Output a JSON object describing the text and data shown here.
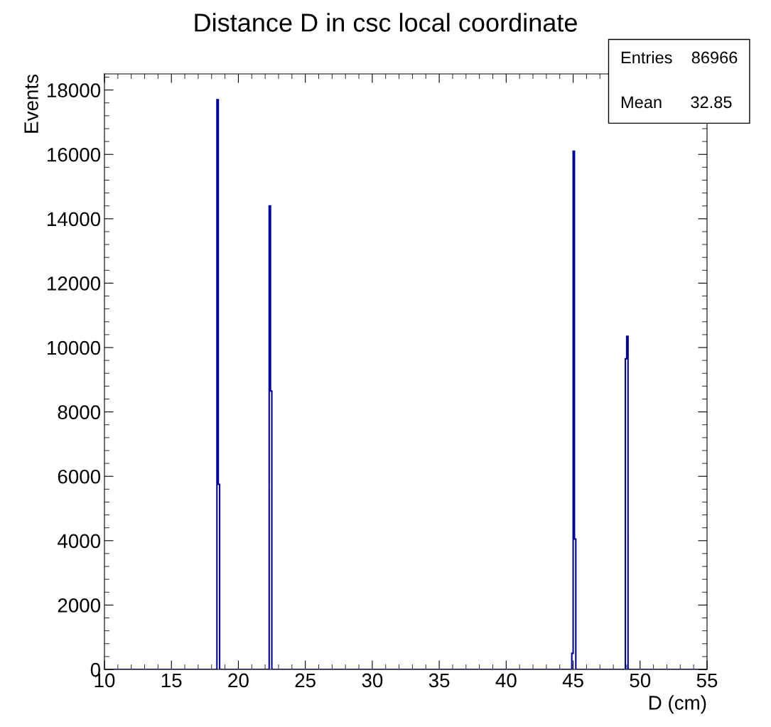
{
  "chart_data": {
    "type": "histogram",
    "title": "Distance D in csc local coordinate",
    "xlabel": "D (cm)",
    "ylabel": "Events",
    "bins": [
      10,
      18.4,
      18.5,
      18.6,
      22.3,
      22.4,
      22.5,
      44.9,
      45.0,
      45.1,
      45.2,
      48.9,
      49.0,
      49.1,
      55
    ],
    "values": [
      0,
      17700,
      5750,
      0,
      14400,
      8650,
      0,
      500,
      16100,
      4050,
      0,
      9650,
      10350,
      0
    ],
    "color": "#0000a0",
    "xlim": [
      10,
      55
    ],
    "xticks": [
      10,
      15,
      20,
      25,
      30,
      35,
      40,
      45,
      50,
      55
    ],
    "ylim": [
      0,
      18500
    ],
    "yticks": [
      0,
      2000,
      4000,
      6000,
      8000,
      10000,
      12000,
      14000,
      16000,
      18000
    ],
    "annotations": [
      "Entries    86966",
      "Mean      32.85"
    ]
  }
}
